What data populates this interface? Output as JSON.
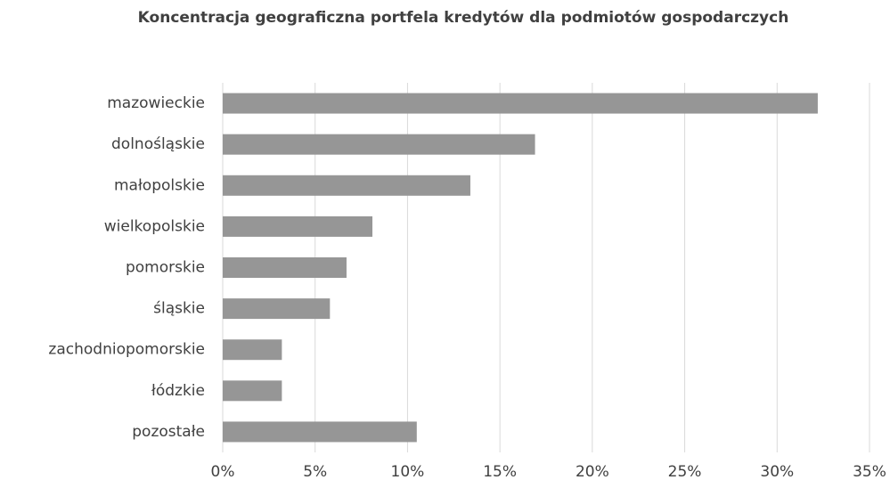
{
  "chart_data": {
    "type": "bar",
    "orientation": "horizontal",
    "title": "Koncentracja geograficzna portfela kredytów dla podmiotów gospodarczych",
    "categories": [
      "mazowieckie",
      "dolnośląskie",
      "małopolskie",
      "wielkopolskie",
      "pomorskie",
      "śląskie",
      "zachodniopomorskie",
      "łódzkie",
      "pozostałe"
    ],
    "values": [
      32.2,
      16.9,
      13.4,
      8.1,
      6.7,
      5.8,
      3.2,
      3.2,
      10.5
    ],
    "color": "#969696",
    "xlim": [
      0,
      35
    ],
    "xticks": [
      {
        "value": 0,
        "label": "0%"
      },
      {
        "value": 5,
        "label": "5%"
      },
      {
        "value": 10,
        "label": "10%"
      },
      {
        "value": 15,
        "label": "15%"
      },
      {
        "value": 20,
        "label": "20%"
      },
      {
        "value": 25,
        "label": "25%"
      },
      {
        "value": 30,
        "label": "30%"
      },
      {
        "value": 35,
        "label": "35%"
      }
    ],
    "grid": true
  }
}
